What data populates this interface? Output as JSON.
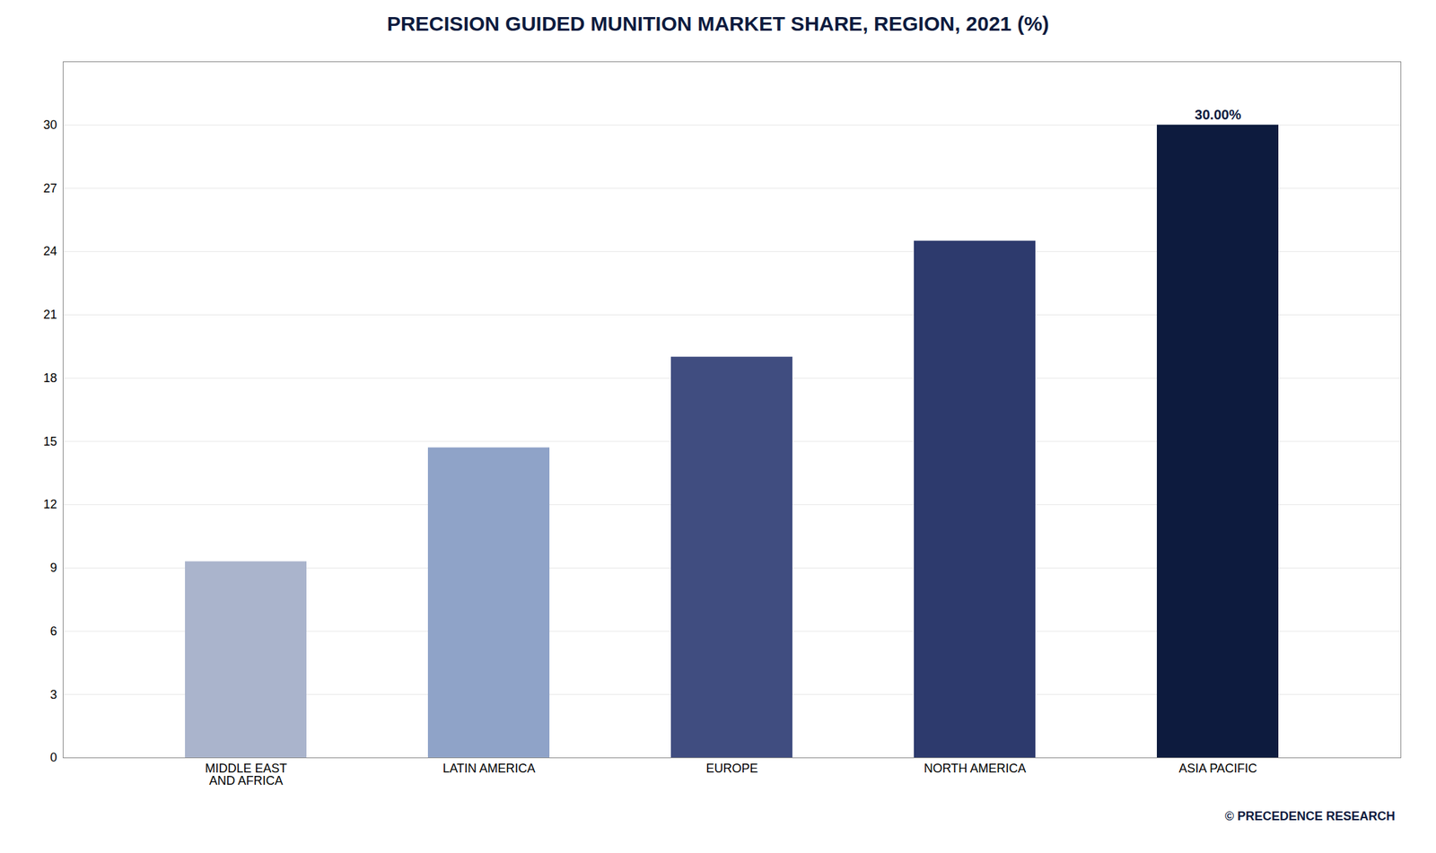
{
  "chart_data": {
    "type": "bar",
    "title": "PRECISION GUIDED MUNITION MARKET SHARE, REGION, 2021 (%)",
    "categories": [
      "MIDDLE EAST\nAND AFRICA",
      "LATIN AMERICA",
      "EUROPE",
      "NORTH AMERICA",
      "ASIA PACIFIC"
    ],
    "values": [
      9.3,
      14.7,
      19.0,
      24.5,
      30.0
    ],
    "colors": [
      "#aab4cc",
      "#8fa3c8",
      "#404d80",
      "#2d3a6d",
      "#0d1b3e"
    ],
    "ylim": [
      0,
      33
    ],
    "yticks": [
      0,
      3,
      6,
      9,
      12,
      15,
      18,
      21,
      24,
      27,
      30
    ],
    "grid": true,
    "annotations": [
      {
        "category": "ASIA PACIFIC",
        "text": "30.00%"
      }
    ],
    "watermark": "© PRECEDENCE RESEARCH"
  }
}
